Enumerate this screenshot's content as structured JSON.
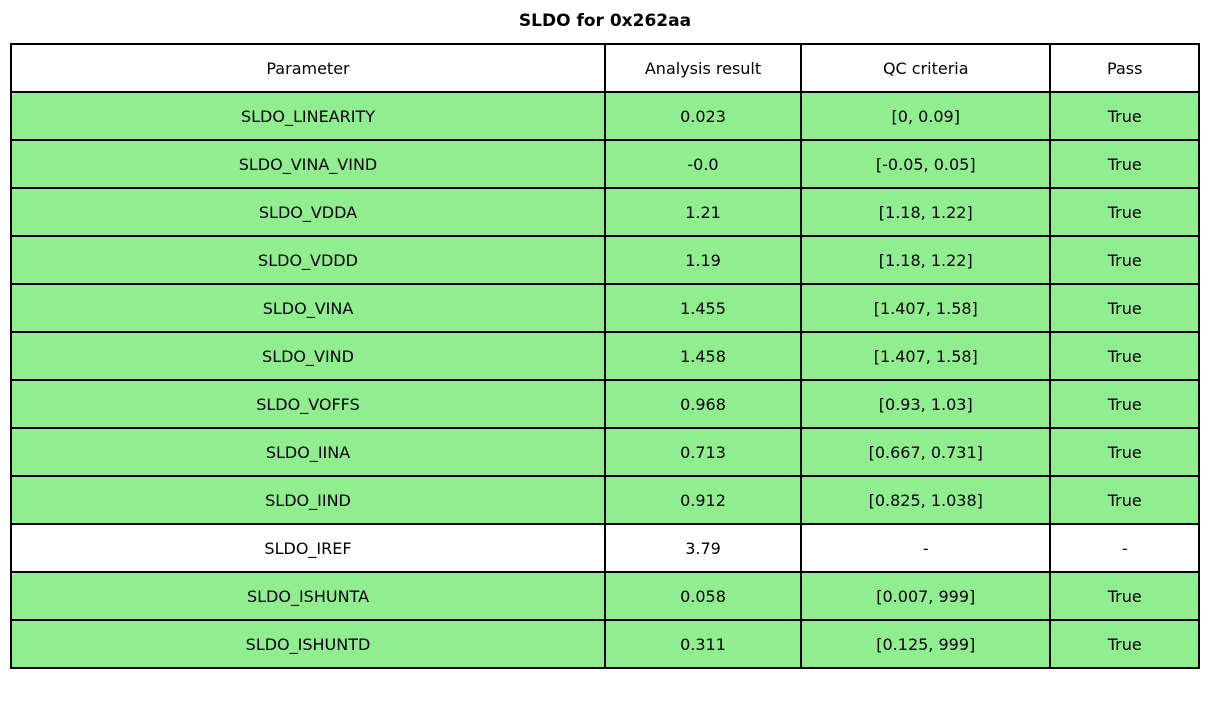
{
  "title": "SLDO for 0x262aa",
  "colors": {
    "pass_row_background": "#90EE90",
    "neutral_row_background": "#ffffff",
    "border": "#000000"
  },
  "chart_data": {
    "type": "table",
    "title": "SLDO for 0x262aa",
    "columns": [
      "Parameter",
      "Analysis result",
      "QC criteria",
      "Pass"
    ],
    "rows": [
      {
        "parameter": "SLDO_LINEARITY",
        "analysis_result": "0.023",
        "qc_criteria": "[0, 0.09]",
        "pass": "True",
        "highlight": true
      },
      {
        "parameter": "SLDO_VINA_VIND",
        "analysis_result": "-0.0",
        "qc_criteria": "[-0.05, 0.05]",
        "pass": "True",
        "highlight": true
      },
      {
        "parameter": "SLDO_VDDA",
        "analysis_result": "1.21",
        "qc_criteria": "[1.18, 1.22]",
        "pass": "True",
        "highlight": true
      },
      {
        "parameter": "SLDO_VDDD",
        "analysis_result": "1.19",
        "qc_criteria": "[1.18, 1.22]",
        "pass": "True",
        "highlight": true
      },
      {
        "parameter": "SLDO_VINA",
        "analysis_result": "1.455",
        "qc_criteria": "[1.407, 1.58]",
        "pass": "True",
        "highlight": true
      },
      {
        "parameter": "SLDO_VIND",
        "analysis_result": "1.458",
        "qc_criteria": "[1.407, 1.58]",
        "pass": "True",
        "highlight": true
      },
      {
        "parameter": "SLDO_VOFFS",
        "analysis_result": "0.968",
        "qc_criteria": "[0.93, 1.03]",
        "pass": "True",
        "highlight": true
      },
      {
        "parameter": "SLDO_IINA",
        "analysis_result": "0.713",
        "qc_criteria": "[0.667, 0.731]",
        "pass": "True",
        "highlight": true
      },
      {
        "parameter": "SLDO_IIND",
        "analysis_result": "0.912",
        "qc_criteria": "[0.825, 1.038]",
        "pass": "True",
        "highlight": true
      },
      {
        "parameter": "SLDO_IREF",
        "analysis_result": "3.79",
        "qc_criteria": "-",
        "pass": "-",
        "highlight": false
      },
      {
        "parameter": "SLDO_ISHUNTA",
        "analysis_result": "0.058",
        "qc_criteria": "[0.007, 999]",
        "pass": "True",
        "highlight": true
      },
      {
        "parameter": "SLDO_ISHUNTD",
        "analysis_result": "0.311",
        "qc_criteria": "[0.125, 999]",
        "pass": "True",
        "highlight": true
      }
    ]
  }
}
